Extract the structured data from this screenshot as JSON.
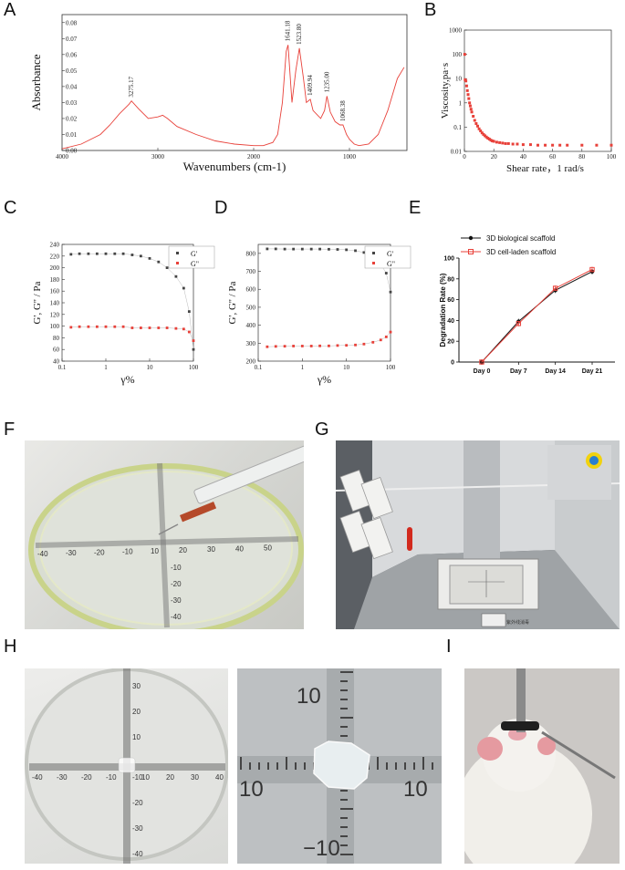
{
  "panel_labels": {
    "a": "A",
    "b": "B",
    "c": "C",
    "d": "D",
    "e": "E",
    "f": "F",
    "g": "G",
    "h": "H",
    "i": "I"
  },
  "chart_data": [
    {
      "id": "A",
      "type": "line",
      "xlabel": "Wavenumbers (cm-1)",
      "ylabel": "Absorbance",
      "xlim": [
        4000,
        400
      ],
      "ylim": [
        0,
        0.085
      ],
      "xticks": [
        "4000",
        "3000",
        "2000",
        "1000"
      ],
      "yticks": [
        "0.00",
        "0.01",
        "0.02",
        "0.03",
        "0.04",
        "0.05",
        "0.06",
        "0.07",
        "0.08"
      ],
      "peaks": [
        "3275.17",
        "1641.18",
        "1523.80",
        "1409.94",
        "1235.00",
        "1068.38"
      ],
      "series": [
        {
          "color": "#e8413a",
          "x": [
            4000,
            3800,
            3600,
            3500,
            3400,
            3300,
            3275,
            3200,
            3100,
            3000,
            2950,
            2900,
            2800,
            2600,
            2400,
            2200,
            2000,
            1900,
            1800,
            1750,
            1700,
            1660,
            1641,
            1600,
            1560,
            1523,
            1480,
            1450,
            1409,
            1380,
            1300,
            1260,
            1235,
            1200,
            1150,
            1100,
            1068,
            1030,
            1000,
            950,
            900,
            800,
            700,
            600,
            500,
            430
          ],
          "y": [
            0.001,
            0.004,
            0.01,
            0.016,
            0.023,
            0.029,
            0.031,
            0.026,
            0.02,
            0.021,
            0.022,
            0.02,
            0.015,
            0.01,
            0.006,
            0.004,
            0.003,
            0.003,
            0.005,
            0.01,
            0.03,
            0.062,
            0.066,
            0.03,
            0.05,
            0.064,
            0.045,
            0.03,
            0.032,
            0.025,
            0.02,
            0.025,
            0.034,
            0.024,
            0.018,
            0.016,
            0.016,
            0.01,
            0.007,
            0.004,
            0.003,
            0.004,
            0.01,
            0.025,
            0.045,
            0.052
          ]
        }
      ]
    },
    {
      "id": "B",
      "type": "scatter",
      "xlabel": "Shear rate，1 rad/s",
      "ylabel": "Viscosity,pa·s",
      "xlim": [
        0,
        100
      ],
      "ylim": [
        0.01,
        1000
      ],
      "yscale": "log",
      "xticks": [
        "0",
        "20",
        "40",
        "60",
        "80",
        "100"
      ],
      "yticks": [
        "0.01",
        "0.1",
        "1",
        "10",
        "100",
        "1000"
      ],
      "series": [
        {
          "color": "#e8413a",
          "x": [
            0.2,
            0.5,
            1,
            1.5,
            2,
            2.5,
            3,
            3.5,
            4,
            4.5,
            5,
            6,
            7,
            8,
            9,
            10,
            11,
            12,
            13,
            14,
            15,
            16,
            17,
            18,
            19,
            20,
            22,
            24,
            26,
            28,
            30,
            33,
            36,
            40,
            45,
            50,
            55,
            60,
            65,
            70,
            80,
            90,
            100
          ],
          "y": [
            100,
            9,
            8,
            5,
            3.2,
            2.2,
            1.5,
            1.0,
            0.75,
            0.55,
            0.42,
            0.28,
            0.19,
            0.14,
            0.11,
            0.085,
            0.07,
            0.058,
            0.05,
            0.044,
            0.039,
            0.035,
            0.032,
            0.029,
            0.027,
            0.026,
            0.024,
            0.023,
            0.022,
            0.021,
            0.021,
            0.02,
            0.02,
            0.019,
            0.019,
            0.018,
            0.018,
            0.018,
            0.018,
            0.018,
            0.018,
            0.018,
            0.018
          ]
        }
      ]
    },
    {
      "id": "C",
      "type": "scatter",
      "xlabel": "γ%",
      "ylabel": "G', G'' / Pa",
      "xlim": [
        0.1,
        100
      ],
      "xscale": "log",
      "ylim": [
        40,
        240
      ],
      "xticks": [
        "0.1",
        "1",
        "10",
        "100"
      ],
      "yticks": [
        "40",
        "60",
        "80",
        "100",
        "120",
        "140",
        "160",
        "180",
        "200",
        "220",
        "240"
      ],
      "series": [
        {
          "name": "G'",
          "color": "#444444",
          "x": [
            0.16,
            0.25,
            0.4,
            0.63,
            1,
            1.6,
            2.5,
            4,
            6.3,
            10,
            16,
            25,
            40,
            60,
            80,
            100
          ],
          "y": [
            223,
            224,
            224,
            224,
            224,
            224,
            224,
            222,
            220,
            216,
            210,
            200,
            185,
            165,
            125,
            60
          ]
        },
        {
          "name": "G\"",
          "color": "#e8413a",
          "x": [
            0.16,
            0.25,
            0.4,
            0.63,
            1,
            1.6,
            2.5,
            4,
            6.3,
            10,
            16,
            25,
            40,
            60,
            80,
            100
          ],
          "y": [
            98,
            99,
            99,
            99,
            99,
            99,
            99,
            97,
            97,
            97,
            97,
            97,
            96,
            95,
            90,
            75
          ]
        }
      ]
    },
    {
      "id": "D",
      "type": "scatter",
      "xlabel": "γ%",
      "ylabel": "G', G'' / Pa",
      "xlim": [
        0.1,
        100
      ],
      "xscale": "log",
      "ylim": [
        200,
        850
      ],
      "xticks": [
        "0.1",
        "1",
        "10",
        "100"
      ],
      "yticks": [
        "200",
        "300",
        "400",
        "500",
        "600",
        "700",
        "800"
      ],
      "series": [
        {
          "name": "G'",
          "color": "#444444",
          "x": [
            0.16,
            0.25,
            0.4,
            0.63,
            1,
            1.6,
            2.5,
            4,
            6.3,
            10,
            16,
            25,
            40,
            60,
            80,
            100
          ],
          "y": [
            825,
            825,
            824,
            824,
            824,
            824,
            824,
            823,
            822,
            820,
            815,
            805,
            780,
            740,
            690,
            585
          ]
        },
        {
          "name": "G\"",
          "color": "#e8413a",
          "x": [
            0.16,
            0.25,
            0.4,
            0.63,
            1,
            1.6,
            2.5,
            4,
            6.3,
            10,
            16,
            25,
            40,
            60,
            80,
            100
          ],
          "y": [
            280,
            282,
            283,
            284,
            284,
            284,
            285,
            285,
            287,
            288,
            290,
            295,
            305,
            318,
            335,
            362
          ]
        }
      ]
    },
    {
      "id": "E",
      "type": "line",
      "xlabel": "",
      "ylabel": "Degradation Rate (%)",
      "categories": [
        "Day 0",
        "Day 7",
        "Day 14",
        "Day 21"
      ],
      "ylim": [
        0,
        100
      ],
      "yticks": [
        "0",
        "20",
        "40",
        "60",
        "80",
        "100"
      ],
      "series": [
        {
          "name": "3D biological scaffold",
          "color": "#111111",
          "values": [
            0,
            39,
            69,
            87
          ]
        },
        {
          "name": "3D cell-laden scaffold",
          "color": "#e8413a",
          "values": [
            0,
            37,
            71,
            89
          ]
        }
      ]
    }
  ],
  "photos": {
    "f_scale_top": [
      "40",
      "30",
      "20",
      "10",
      "10",
      "20",
      "30",
      "40",
      "50"
    ],
    "f_scale_side": [
      "10",
      "20",
      "30",
      "40"
    ],
    "h1_scale_x": [
      "40",
      "30",
      "20",
      "10",
      "10",
      "20",
      "30",
      "40"
    ],
    "h1_scale_y": [
      "30",
      "20",
      "10",
      "10",
      "20",
      "30",
      "40"
    ],
    "h2_scale": [
      "10",
      "10",
      "10",
      "10"
    ],
    "g_sticker": "紫外线消毒"
  }
}
